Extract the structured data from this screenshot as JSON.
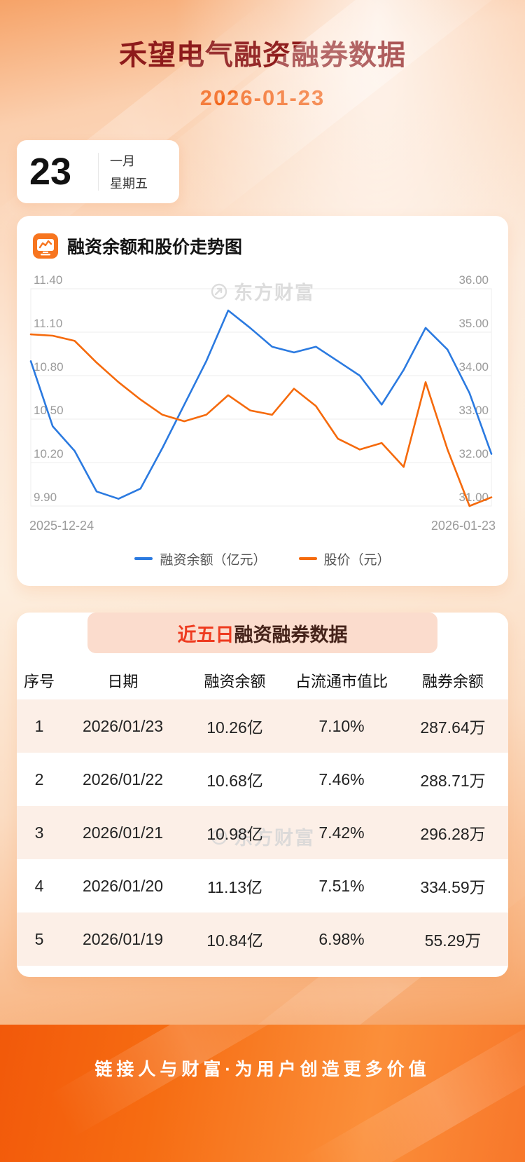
{
  "page": {
    "title": "禾望电气融资融券数据",
    "date": "2026-01-23"
  },
  "calendar": {
    "day": "23",
    "month": "一月",
    "weekday": "星期五"
  },
  "chart_card": {
    "heading": "融资余额和股价走势图",
    "watermark": "东方财富"
  },
  "chart_data": {
    "type": "line",
    "title": "融资余额和股价走势图",
    "x_start_label": "2025-12-24",
    "x_end_label": "2026-01-23",
    "grid": true,
    "legend_position": "bottom",
    "left_axis": {
      "min": 9.9,
      "max": 11.4,
      "ticks": [
        "11.40",
        "11.10",
        "10.80",
        "10.50",
        "10.20",
        "9.90"
      ]
    },
    "right_axis": {
      "min": 31.0,
      "max": 36.0,
      "ticks": [
        "36.00",
        "35.00",
        "34.00",
        "33.00",
        "32.00",
        "31.00"
      ]
    },
    "series": [
      {
        "name": "融资余额（亿元）",
        "axis": "left",
        "color": "#2b7ae0",
        "values": [
          10.9,
          10.45,
          10.28,
          10.0,
          9.95,
          10.02,
          10.3,
          10.6,
          10.9,
          11.25,
          11.13,
          11.0,
          10.96,
          11.0,
          10.9,
          10.8,
          10.6,
          10.84,
          11.13,
          10.98,
          10.68,
          10.26
        ]
      },
      {
        "name": "股价（元）",
        "axis": "right",
        "color": "#f56a0c",
        "values": [
          34.95,
          34.92,
          34.8,
          34.3,
          33.85,
          33.45,
          33.1,
          32.95,
          33.1,
          33.55,
          33.2,
          33.1,
          33.7,
          33.3,
          32.55,
          32.3,
          32.45,
          31.9,
          33.85,
          32.3,
          31.0,
          31.2
        ]
      }
    ]
  },
  "table_card": {
    "title_highlight": "近五日",
    "title_rest": "融资融券数据",
    "watermark": "东方财富",
    "columns": [
      "序号",
      "日期",
      "融资余额",
      "占流通市值比",
      "融券余额"
    ],
    "rows": [
      [
        "1",
        "2026/01/23",
        "10.26亿",
        "7.10%",
        "287.64万"
      ],
      [
        "2",
        "2026/01/22",
        "10.68亿",
        "7.46%",
        "288.71万"
      ],
      [
        "3",
        "2026/01/21",
        "10.98亿",
        "7.42%",
        "296.28万"
      ],
      [
        "4",
        "2026/01/20",
        "11.13亿",
        "7.51%",
        "334.59万"
      ],
      [
        "5",
        "2026/01/19",
        "10.84亿",
        "6.98%",
        "55.29万"
      ]
    ]
  },
  "footer": {
    "text": "链接人与财富·为用户创造更多价值"
  },
  "colors": {
    "title": "#8e1b1b",
    "date_orange": "#f2661b",
    "highlight_red": "#ee3b20",
    "line_blue": "#2b7ae0",
    "line_orange": "#f56a0c",
    "footer_orange": "#f2590a"
  }
}
